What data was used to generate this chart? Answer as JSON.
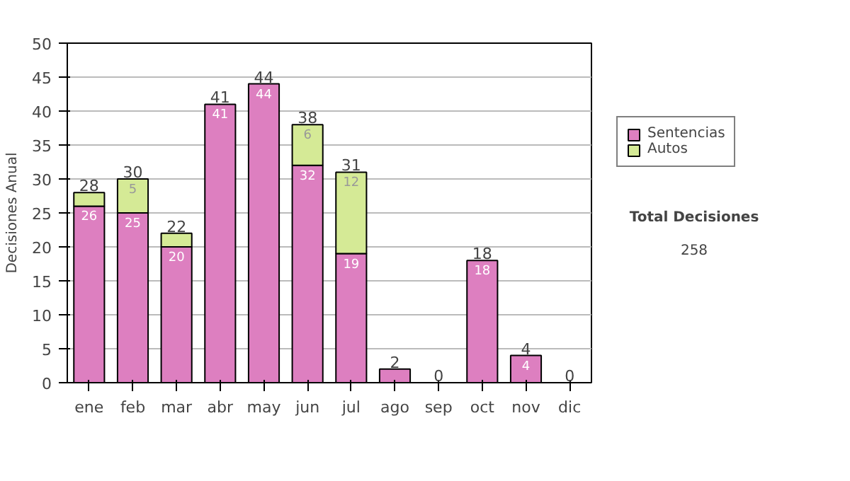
{
  "chart_data": {
    "type": "bar",
    "stacked": true,
    "ylabel": "Decisiones Anual",
    "categories": [
      "ene",
      "feb",
      "mar",
      "abr",
      "may",
      "jun",
      "jul",
      "ago",
      "sep",
      "oct",
      "nov",
      "dic"
    ],
    "series": [
      {
        "name": "Sentencias",
        "color": "#dd7fc0",
        "values": [
          26,
          25,
          20,
          41,
          44,
          32,
          19,
          2,
          0,
          18,
          4,
          0
        ],
        "value_labels": [
          "26",
          "25",
          "20",
          "41",
          "44",
          "32",
          "19",
          null,
          null,
          "18",
          "4",
          null
        ]
      },
      {
        "name": "Autos",
        "color": "#d5ea96",
        "values": [
          2,
          5,
          2,
          0,
          0,
          6,
          12,
          0,
          0,
          0,
          0,
          0
        ],
        "value_labels": [
          null,
          "5",
          null,
          null,
          null,
          "6",
          "12",
          null,
          null,
          null,
          null,
          null
        ]
      }
    ],
    "totals": [
      "28",
      "30",
      "22",
      "41",
      "44",
      "38",
      "31",
      "2",
      "0",
      "18",
      "4",
      "0"
    ],
    "ylim": [
      0,
      50
    ],
    "yticks": [
      0,
      5,
      10,
      15,
      20,
      25,
      30,
      35,
      40,
      45,
      50
    ],
    "grid": "y",
    "legend": "right",
    "annotations": [
      "Total Decisiones",
      "258"
    ]
  }
}
